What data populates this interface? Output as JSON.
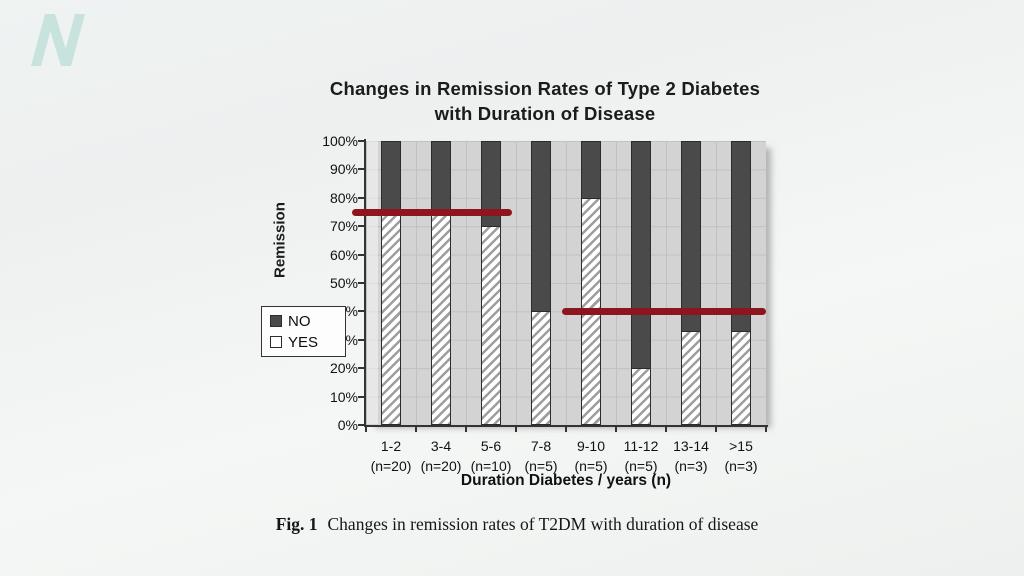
{
  "logo": {
    "name": "n-logo",
    "color": "#c8e2dd"
  },
  "chart": {
    "title_line1": "Changes in Remission Rates of Type 2 Diabetes",
    "title_line2": "with Duration of Disease",
    "y_axis_label": "Remission",
    "x_axis_label": "Duration Diabetes / years (n)"
  },
  "chart_data": {
    "type": "bar",
    "stacked": true,
    "title": "Changes in Remission Rates of Type 2 Diabetes with Duration of Disease",
    "xlabel": "Duration Diabetes / years (n)",
    "ylabel": "Remission",
    "ylim": [
      0,
      100
    ],
    "grid": true,
    "legend_position": "left-middle",
    "categories": [
      "1-2",
      "3-4",
      "5-6",
      "7-8",
      "9-10",
      "11-12",
      "13-14",
      ">15"
    ],
    "category_n": [
      "(n=20)",
      "(n=20)",
      "(n=10)",
      "(n=5)",
      "(n=5)",
      "(n=5)",
      "(n=3)",
      "(n=3)"
    ],
    "y_tick_labels": [
      "100%",
      "90%",
      "80%",
      "70%",
      "60%",
      "50%",
      "40%",
      "30%",
      "20%",
      "10%",
      "0%"
    ],
    "series": [
      {
        "name": "NO",
        "style": "solid-dark-gray",
        "color": "#4a4a4a",
        "values": [
          25,
          25,
          30,
          60,
          20,
          80,
          67,
          67
        ]
      },
      {
        "name": "YES",
        "style": "white-diagonal-hatch",
        "color": "#ffffff",
        "values": [
          75,
          75,
          70,
          40,
          80,
          20,
          33,
          33
        ]
      }
    ],
    "reference_lines": [
      {
        "value": 75,
        "from_category": 0,
        "to_category": 2,
        "color": "#8e1420"
      },
      {
        "value": 40,
        "from_category": 4,
        "to_category": 7,
        "color": "#8e1420"
      }
    ]
  },
  "caption": {
    "prefix": "Fig. 1",
    "text": "Changes in remission rates of T2DM with duration of disease"
  }
}
